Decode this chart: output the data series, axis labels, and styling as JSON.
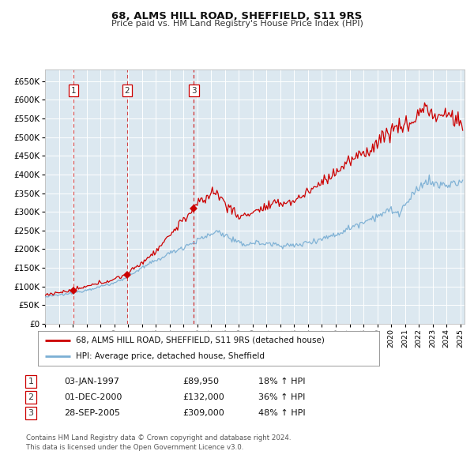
{
  "title": "68, ALMS HILL ROAD, SHEFFIELD, S11 9RS",
  "subtitle": "Price paid vs. HM Land Registry's House Price Index (HPI)",
  "legend_line1": "68, ALMS HILL ROAD, SHEFFIELD, S11 9RS (detached house)",
  "legend_line2": "HPI: Average price, detached house, Sheffield",
  "footer1": "Contains HM Land Registry data © Crown copyright and database right 2024.",
  "footer2": "This data is licensed under the Open Government Licence v3.0.",
  "hpi_color": "#7bafd4",
  "price_color": "#cc0000",
  "bg_color": "#dce8f0",
  "transactions": [
    {
      "label": "1",
      "date_num": 1997.04,
      "price": 89950,
      "pct": "18%",
      "date_str": "03-JAN-1997"
    },
    {
      "label": "2",
      "date_num": 2000.92,
      "price": 132000,
      "pct": "36%",
      "date_str": "01-DEC-2000"
    },
    {
      "label": "3",
      "date_num": 2005.75,
      "price": 309000,
      "pct": "48%",
      "date_str": "28-SEP-2005"
    }
  ],
  "ylim": [
    0,
    680000
  ],
  "ytick_vals": [
    0,
    50000,
    100000,
    150000,
    200000,
    250000,
    300000,
    350000,
    400000,
    450000,
    500000,
    550000,
    600000,
    650000
  ],
  "xtick_vals": [
    1995,
    1996,
    1997,
    1998,
    1999,
    2000,
    2001,
    2002,
    2003,
    2004,
    2005,
    2006,
    2007,
    2008,
    2009,
    2010,
    2011,
    2012,
    2013,
    2014,
    2015,
    2016,
    2017,
    2018,
    2019,
    2020,
    2021,
    2022,
    2023,
    2024,
    2025
  ]
}
